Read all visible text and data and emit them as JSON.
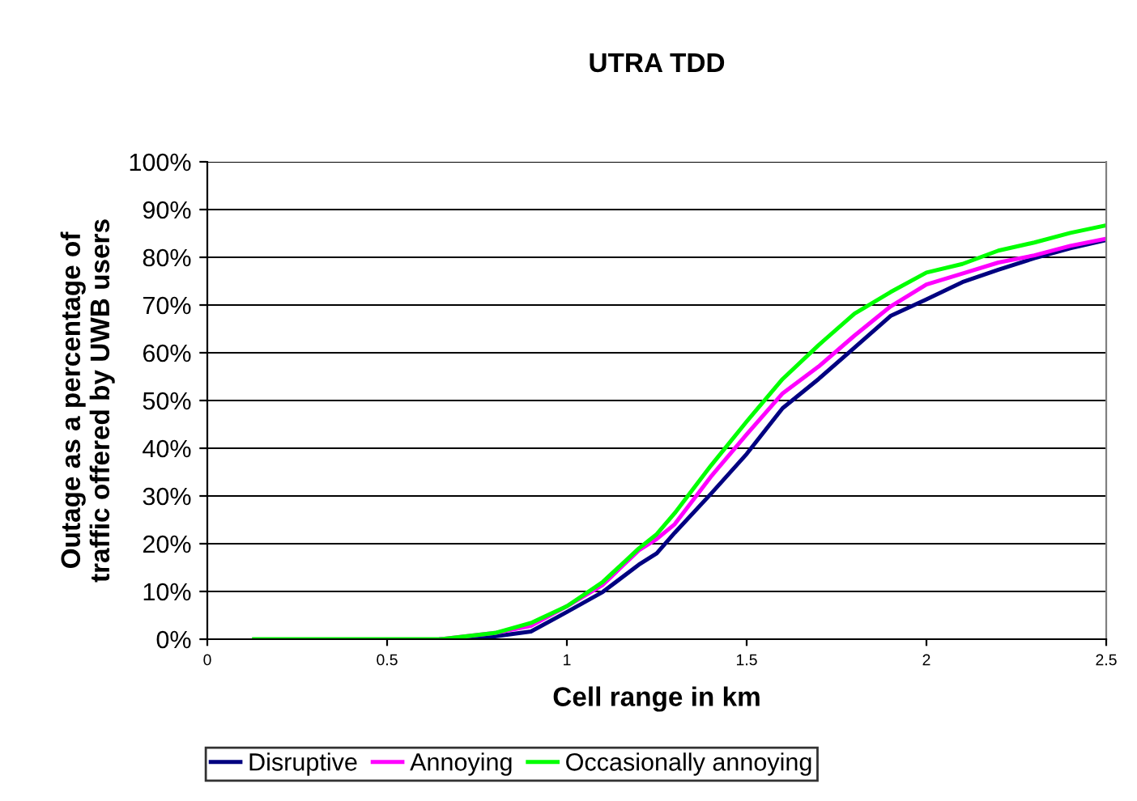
{
  "chart_data": {
    "type": "line",
    "title": "UTRA TDD",
    "xlabel": "Cell range in km",
    "ylabel": "Outage as a percentage of\ntraffic offered by UWB users",
    "x": [
      0.13,
      0.5,
      0.65,
      0.8,
      0.9,
      1.0,
      1.1,
      1.2,
      1.25,
      1.3,
      1.4,
      1.5,
      1.6,
      1.7,
      1.8,
      1.9,
      2.0,
      2.1,
      2.2,
      2.3,
      2.4,
      2.5
    ],
    "series": [
      {
        "name": "Disruptive",
        "color": "#000080",
        "values": [
          null,
          null,
          0,
          0.6,
          1.6,
          5.7,
          9.9,
          15.6,
          18,
          22.3,
          30.4,
          38.8,
          48.4,
          54.5,
          61.1,
          67.7,
          71.2,
          74.8,
          77.4,
          79.8,
          81.9,
          83.6
        ]
      },
      {
        "name": "Annoying",
        "color": "#ff00ff",
        "values": [
          null,
          null,
          0,
          1.3,
          2.8,
          6.9,
          11.4,
          18.6,
          21,
          24.1,
          34.0,
          42.9,
          51.5,
          57.1,
          63.6,
          69.7,
          74.3,
          76.6,
          78.9,
          80.4,
          82.4,
          83.9
        ]
      },
      {
        "name": "Occasionally annoying",
        "color": "#00ff00",
        "values": [
          0,
          0,
          0,
          1.3,
          3.4,
          6.9,
          12.0,
          19.0,
          22,
          26.4,
          36.3,
          45.6,
          54.5,
          61.6,
          68.2,
          72.7,
          76.8,
          78.6,
          81.4,
          83.1,
          85.1,
          86.7
        ]
      }
    ],
    "xlim": [
      0,
      2.5
    ],
    "xticks": [
      0,
      0.5,
      1,
      1.5,
      2,
      2.5
    ],
    "ylim": [
      0,
      100
    ],
    "yticks": [
      {
        "value": 0,
        "label": "0%"
      },
      {
        "value": 10,
        "label": "10%"
      },
      {
        "value": 20,
        "label": "20%"
      },
      {
        "value": 30,
        "label": "30%"
      },
      {
        "value": 40,
        "label": "40%"
      },
      {
        "value": 50,
        "label": "50%"
      },
      {
        "value": 60,
        "label": "60%"
      },
      {
        "value": 70,
        "label": "70%"
      },
      {
        "value": 80,
        "label": "80%"
      },
      {
        "value": 90,
        "label": "90%"
      },
      {
        "value": 100,
        "label": "100%"
      }
    ],
    "grid": "y",
    "legend": "bottom",
    "marker": "none",
    "line_style": "solid"
  }
}
